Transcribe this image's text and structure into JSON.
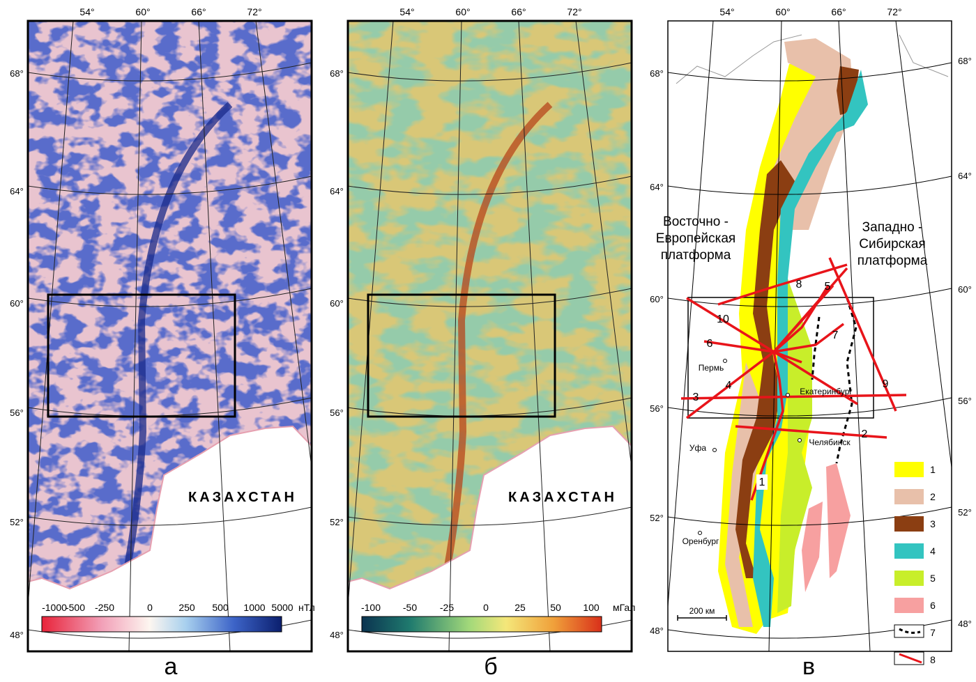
{
  "panels": [
    {
      "label": "а",
      "lon_labels": [
        "54°",
        "60°",
        "66°",
        "72°"
      ],
      "lat_labels": [
        "68°",
        "64°",
        "60°",
        "56°",
        "52°",
        "48°"
      ],
      "country": "КАЗАХСТАН",
      "colorbar": {
        "ticks": [
          "-1000",
          "-500",
          "-250",
          "0",
          "250",
          "500",
          "1000",
          "5000"
        ],
        "unit": "нТл"
      }
    },
    {
      "label": "б",
      "lon_labels": [
        "54°",
        "60°",
        "66°",
        "72°"
      ],
      "lat_labels": [
        "68°",
        "64°",
        "60°",
        "56°",
        "52°",
        "48°"
      ],
      "country": "КАЗАХСТАН",
      "colorbar": {
        "ticks": [
          "-100",
          "-50",
          "-25",
          "0",
          "25",
          "50",
          "100"
        ],
        "unit": "мГал"
      }
    },
    {
      "label": "в",
      "lon_labels": [
        "54°",
        "60°",
        "66°",
        "72°"
      ],
      "lat_labels_left": [
        "68°",
        "64°",
        "60°",
        "56°",
        "52°",
        "48°"
      ],
      "lat_labels_right": [
        "68°",
        "64°",
        "60°",
        "56°",
        "52°",
        "48°"
      ],
      "platforms": [
        [
          "Восточно -",
          "Европейская",
          "платформа"
        ],
        [
          "Западно -",
          "Сибирская",
          "платформа"
        ]
      ],
      "cities": [
        "Пермь",
        "Екатеринбург",
        "Уфа",
        "Челябинск",
        "Оренбург"
      ],
      "profiles": [
        "1",
        "2",
        "3",
        "4",
        "5",
        "6",
        "7",
        "8",
        "9",
        "10"
      ],
      "legend": [
        "1",
        "2",
        "3",
        "4",
        "5",
        "6",
        "7",
        "8"
      ],
      "scale": "200 км"
    }
  ]
}
